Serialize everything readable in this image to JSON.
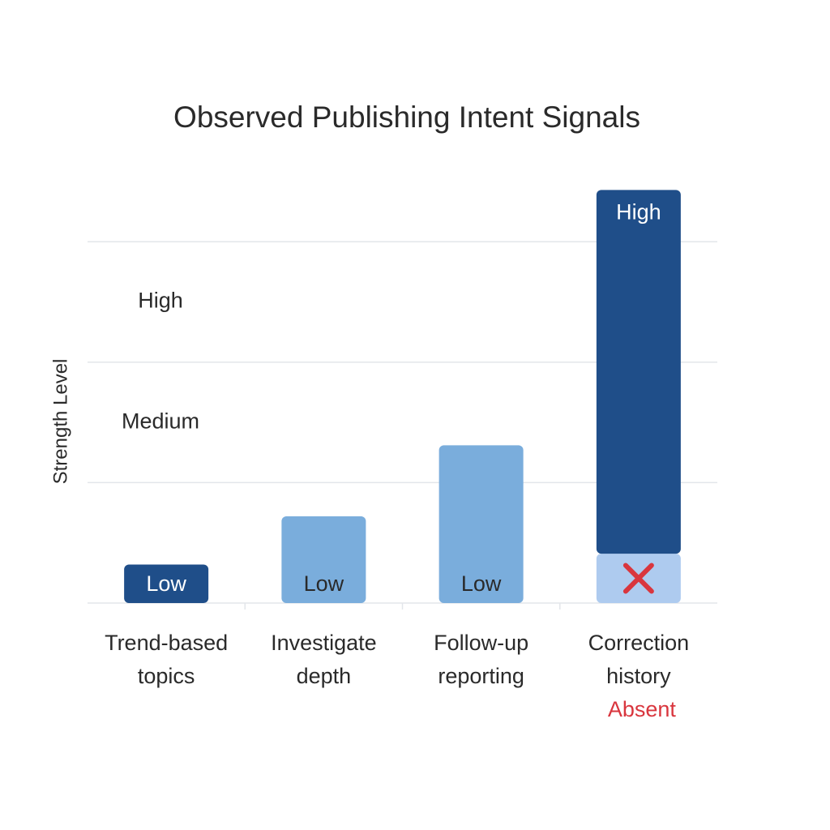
{
  "chart_data": {
    "type": "bar",
    "title": "Observed Publishing Intent Signals",
    "y_label": "Strength Level",
    "categories": [
      [
        "Trend-based",
        "topics"
      ],
      [
        "Investigate",
        "depth"
      ],
      [
        "Follow-up",
        "reporting"
      ],
      [
        "Correction",
        "history"
      ]
    ],
    "values": [
      0.32,
      0.72,
      1.31,
      3.02
    ],
    "value_labels": [
      "Low",
      "Low",
      "Low",
      "High"
    ],
    "colors": [
      "#1f4e89",
      "#7aaddc",
      "#7aaddc",
      "#1f4e89"
    ],
    "base_segment": {
      "index": 3,
      "value": 0.41,
      "color": "#aecbef",
      "note": "Absent",
      "note_color": "#d9363e"
    },
    "ylim": [
      0,
      3.5
    ],
    "yticks": [
      {
        "value": 1.5,
        "label": "Medium"
      },
      {
        "value": 2.5,
        "label": "High"
      }
    ],
    "grid_values": [
      0,
      1,
      2,
      3
    ],
    "grid": true
  }
}
